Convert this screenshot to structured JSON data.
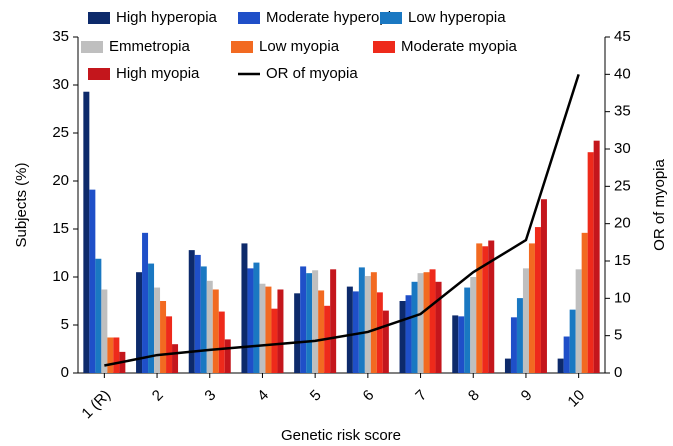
{
  "chart_data": {
    "type": "bar",
    "x_label": "Genetic risk score",
    "y_label": "Subjects (%)",
    "y2_label": "OR of myopia",
    "categories": [
      "1 (R)",
      "2",
      "3",
      "4",
      "5",
      "6",
      "7",
      "8",
      "9",
      "10"
    ],
    "series": [
      {
        "name": "High hyperopia",
        "color": "#0d2a6b",
        "values": [
          29.3,
          10.5,
          12.8,
          13.5,
          8.3,
          9.0,
          7.5,
          6.0,
          1.5,
          1.5
        ]
      },
      {
        "name": "Moderate hyperopia",
        "color": "#1f4fc8",
        "values": [
          19.1,
          14.6,
          12.3,
          10.9,
          11.1,
          8.5,
          8.1,
          5.9,
          5.8,
          3.8
        ]
      },
      {
        "name": "Low hyperopia",
        "color": "#1a78c2",
        "values": [
          11.9,
          11.4,
          11.1,
          11.5,
          10.4,
          11.0,
          9.5,
          8.9,
          7.8,
          6.6
        ]
      },
      {
        "name": "Emmetropia",
        "color": "#bfbfbf",
        "values": [
          8.7,
          8.9,
          9.6,
          9.3,
          10.7,
          10.1,
          10.4,
          10.0,
          10.9,
          10.8
        ]
      },
      {
        "name": "Low myopia",
        "color": "#f26a21",
        "values": [
          3.7,
          7.5,
          8.7,
          9.0,
          8.6,
          10.5,
          10.5,
          13.5,
          13.5,
          14.6
        ]
      },
      {
        "name": "Moderate myopia",
        "color": "#ee2a1b",
        "values": [
          3.7,
          5.9,
          6.4,
          6.7,
          7.0,
          8.4,
          10.8,
          13.2,
          15.2,
          23.0
        ]
      },
      {
        "name": "High myopia",
        "color": "#c4161c",
        "values": [
          2.2,
          3.0,
          3.5,
          8.7,
          10.8,
          6.5,
          9.5,
          13.8,
          18.1,
          24.2
        ]
      },
      {
        "name": "OR of myopia",
        "type": "line",
        "axis": "y2",
        "color": "#000000",
        "values": [
          1.0,
          2.4,
          3.1,
          3.7,
          4.3,
          5.5,
          7.9,
          13.5,
          17.8,
          40.0
        ]
      }
    ],
    "ylim": [
      0,
      35
    ],
    "yticks": [
      0,
      5,
      10,
      15,
      20,
      25,
      30,
      35
    ],
    "y2lim": [
      0,
      45
    ],
    "y2ticks": [
      0,
      5,
      10,
      15,
      20,
      25,
      30,
      35,
      40,
      45
    ],
    "grid": false
  }
}
